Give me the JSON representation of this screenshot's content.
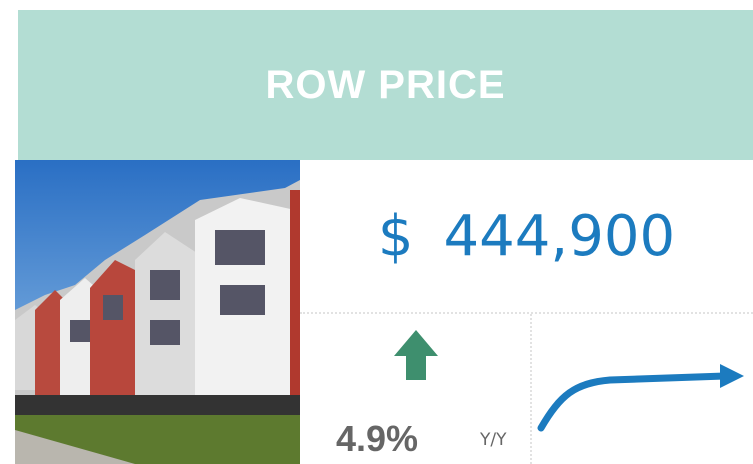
{
  "header": {
    "title": "ROW PRICE"
  },
  "price": {
    "currency": "$",
    "amount": "444,900"
  },
  "change": {
    "value": "4.9%",
    "period": "Y/Y"
  }
}
